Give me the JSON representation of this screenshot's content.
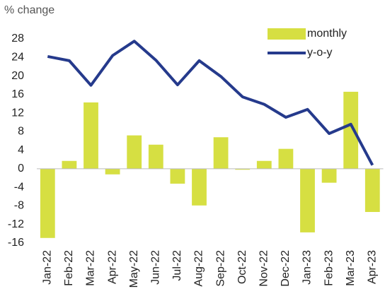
{
  "chart_data": {
    "type": "bar",
    "y_label": "% change",
    "categories": [
      "Jan-22",
      "Feb-22",
      "Mar-22",
      "Apr-22",
      "May-22",
      "Jun-22",
      "Jul-22",
      "Aug-22",
      "Sep-22",
      "Oct-22",
      "Nov-22",
      "Dec-22",
      "Jan-23",
      "Feb-23",
      "Mar-23",
      "Apr-23"
    ],
    "series": [
      {
        "name": "monthly",
        "type": "bar",
        "color": "#d6df42",
        "values": [
          -14.9,
          1.7,
          14.3,
          -1.2,
          7.2,
          5.2,
          -3.2,
          -7.9,
          6.8,
          -0.2,
          1.7,
          4.3,
          -13.7,
          -3.0,
          16.6,
          -9.3
        ]
      },
      {
        "name": "y-o-y",
        "type": "line",
        "color": "#253a8c",
        "values": [
          24.2,
          23.3,
          18.0,
          24.4,
          27.5,
          23.4,
          18.1,
          23.3,
          19.9,
          15.5,
          13.9,
          11.1,
          12.8,
          7.6,
          9.6,
          0.8
        ]
      }
    ],
    "ylim": [
      -16,
      28
    ],
    "yticks": [
      -16,
      -12,
      -8,
      -4,
      0,
      4,
      8,
      12,
      16,
      20,
      24,
      28
    ],
    "legend": "top-right"
  }
}
